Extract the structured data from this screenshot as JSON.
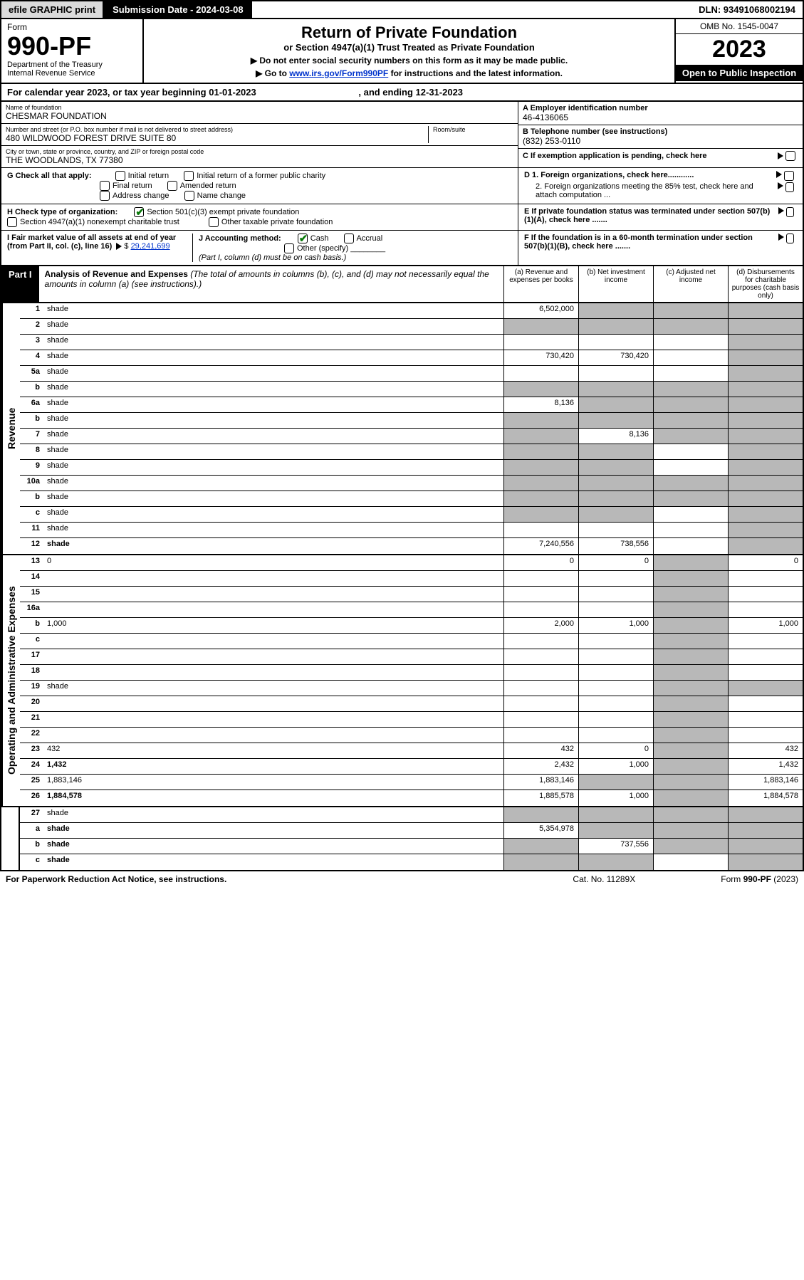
{
  "topbar": {
    "efile": "efile GRAPHIC print",
    "subdate_label": "Submission Date - 2024-03-08",
    "dln": "DLN: 93491068002194"
  },
  "header": {
    "form": "Form",
    "num": "990-PF",
    "dept": "Department of the Treasury",
    "irs": "Internal Revenue Service",
    "title": "Return of Private Foundation",
    "sub": "or Section 4947(a)(1) Trust Treated as Private Foundation",
    "instr1": "▶ Do not enter social security numbers on this form as it may be made public.",
    "instr2_pre": "▶ Go to ",
    "instr2_link": "www.irs.gov/Form990PF",
    "instr2_post": " for instructions and the latest information.",
    "omb": "OMB No. 1545-0047",
    "year": "2023",
    "open": "Open to Public Inspection"
  },
  "calyear": {
    "pre": "For calendar year 2023, or tax year beginning ",
    "begin": "01-01-2023",
    "mid": " , and ending ",
    "end": "12-31-2023"
  },
  "id": {
    "name_lbl": "Name of foundation",
    "name": "CHESMAR FOUNDATION",
    "addr_lbl": "Number and street (or P.O. box number if mail is not delivered to street address)",
    "addr": "480 WILDWOOD FOREST DRIVE SUITE 80",
    "room_lbl": "Room/suite",
    "city_lbl": "City or town, state or province, country, and ZIP or foreign postal code",
    "city": "THE WOODLANDS, TX  77380",
    "a_lbl": "A Employer identification number",
    "a_val": "46-4136065",
    "b_lbl": "B Telephone number (see instructions)",
    "b_val": "(832) 253-0110",
    "c_lbl": "C If exemption application is pending, check here",
    "d1": "D 1. Foreign organizations, check here............",
    "d2": "2. Foreign organizations meeting the 85% test, check here and attach computation ...",
    "e": "E  If private foundation status was terminated under section 507(b)(1)(A), check here .......",
    "f": "F  If the foundation is in a 60-month termination under section 507(b)(1)(B), check here .......",
    "g_lbl": "G Check all that apply:",
    "g_initial": "Initial return",
    "g_initial_former": "Initial return of a former public charity",
    "g_final": "Final return",
    "g_amended": "Amended return",
    "g_address": "Address change",
    "g_name": "Name change",
    "h_lbl": "H Check type of organization:",
    "h_501c3": "Section 501(c)(3) exempt private foundation",
    "h_4947": "Section 4947(a)(1) nonexempt charitable trust",
    "h_other": "Other taxable private foundation",
    "i_lbl": "I Fair market value of all assets at end of year (from Part II, col. (c), line 16)",
    "i_val": "29,241,699",
    "j_lbl": "J Accounting method:",
    "j_cash": "Cash",
    "j_accrual": "Accrual",
    "j_other": "Other (specify)",
    "j_note": "(Part I, column (d) must be on cash basis.)"
  },
  "part1": {
    "hdr": "Part I",
    "title": "Analysis of Revenue and Expenses",
    "note": " (The total of amounts in columns (b), (c), and (d) may not necessarily equal the amounts in column (a) (see instructions).)",
    "col_a": "(a) Revenue and expenses per books",
    "col_b": "(b) Net investment income",
    "col_c": "(c) Adjusted net income",
    "col_d": "(d) Disbursements for charitable purposes (cash basis only)"
  },
  "sections": {
    "revenue": "Revenue",
    "expenses": "Operating and Administrative Expenses"
  },
  "lines": [
    {
      "n": "1",
      "d": "shade",
      "a": "6,502,000",
      "b": "shade",
      "c": "shade"
    },
    {
      "n": "2",
      "d": "shade",
      "a": "shade",
      "b": "shade",
      "c": "shade"
    },
    {
      "n": "3",
      "d": "shade",
      "a": "",
      "b": "",
      "c": ""
    },
    {
      "n": "4",
      "d": "shade",
      "a": "730,420",
      "b": "730,420",
      "c": ""
    },
    {
      "n": "5a",
      "d": "shade",
      "a": "",
      "b": "",
      "c": ""
    },
    {
      "n": "b",
      "d": "shade",
      "a": "shade",
      "b": "shade",
      "c": "shade"
    },
    {
      "n": "6a",
      "d": "shade",
      "a": "8,136",
      "b": "shade",
      "c": "shade"
    },
    {
      "n": "b",
      "d": "shade",
      "a": "shade",
      "b": "shade",
      "c": "shade"
    },
    {
      "n": "7",
      "d": "shade",
      "a": "shade",
      "b": "8,136",
      "c": "shade"
    },
    {
      "n": "8",
      "d": "shade",
      "a": "shade",
      "b": "shade",
      "c": ""
    },
    {
      "n": "9",
      "d": "shade",
      "a": "shade",
      "b": "shade",
      "c": ""
    },
    {
      "n": "10a",
      "d": "shade",
      "a": "shade",
      "b": "shade",
      "c": "shade"
    },
    {
      "n": "b",
      "d": "shade",
      "a": "shade",
      "b": "shade",
      "c": "shade"
    },
    {
      "n": "c",
      "d": "shade",
      "a": "shade",
      "b": "shade",
      "c": ""
    },
    {
      "n": "11",
      "d": "shade",
      "a": "",
      "b": "",
      "c": ""
    },
    {
      "n": "12",
      "d": "shade",
      "a": "7,240,556",
      "b": "738,556",
      "c": "",
      "bold": true
    }
  ],
  "exp_lines": [
    {
      "n": "13",
      "d": "0",
      "a": "0",
      "b": "0",
      "c": "shade"
    },
    {
      "n": "14",
      "d": "",
      "a": "",
      "b": "",
      "c": "shade"
    },
    {
      "n": "15",
      "d": "",
      "a": "",
      "b": "",
      "c": "shade"
    },
    {
      "n": "16a",
      "d": "",
      "a": "",
      "b": "",
      "c": "shade"
    },
    {
      "n": "b",
      "d": "1,000",
      "a": "2,000",
      "b": "1,000",
      "c": "shade"
    },
    {
      "n": "c",
      "d": "",
      "a": "",
      "b": "",
      "c": "shade"
    },
    {
      "n": "17",
      "d": "",
      "a": "",
      "b": "",
      "c": "shade"
    },
    {
      "n": "18",
      "d": "",
      "a": "",
      "b": "",
      "c": "shade"
    },
    {
      "n": "19",
      "d": "shade",
      "a": "",
      "b": "",
      "c": "shade"
    },
    {
      "n": "20",
      "d": "",
      "a": "",
      "b": "",
      "c": "shade"
    },
    {
      "n": "21",
      "d": "",
      "a": "",
      "b": "",
      "c": "shade"
    },
    {
      "n": "22",
      "d": "",
      "a": "",
      "b": "",
      "c": "shade"
    },
    {
      "n": "23",
      "d": "432",
      "a": "432",
      "b": "0",
      "c": "shade"
    },
    {
      "n": "24",
      "d": "1,432",
      "a": "2,432",
      "b": "1,000",
      "c": "shade",
      "bold": true
    },
    {
      "n": "25",
      "d": "1,883,146",
      "a": "1,883,146",
      "b": "shade",
      "c": "shade"
    },
    {
      "n": "26",
      "d": "1,884,578",
      "a": "1,885,578",
      "b": "1,000",
      "c": "shade",
      "bold": true
    }
  ],
  "bottom_lines": [
    {
      "n": "27",
      "d": "shade",
      "a": "shade",
      "b": "shade",
      "c": "shade"
    },
    {
      "n": "a",
      "d": "shade",
      "a": "5,354,978",
      "b": "shade",
      "c": "shade",
      "bold": true
    },
    {
      "n": "b",
      "d": "shade",
      "a": "shade",
      "b": "737,556",
      "c": "shade",
      "bold": true
    },
    {
      "n": "c",
      "d": "shade",
      "a": "shade",
      "b": "shade",
      "c": "",
      "bold": true
    }
  ],
  "footer": {
    "left": "For Paperwork Reduction Act Notice, see instructions.",
    "mid": "Cat. No. 11289X",
    "right": "Form 990-PF (2023)"
  }
}
